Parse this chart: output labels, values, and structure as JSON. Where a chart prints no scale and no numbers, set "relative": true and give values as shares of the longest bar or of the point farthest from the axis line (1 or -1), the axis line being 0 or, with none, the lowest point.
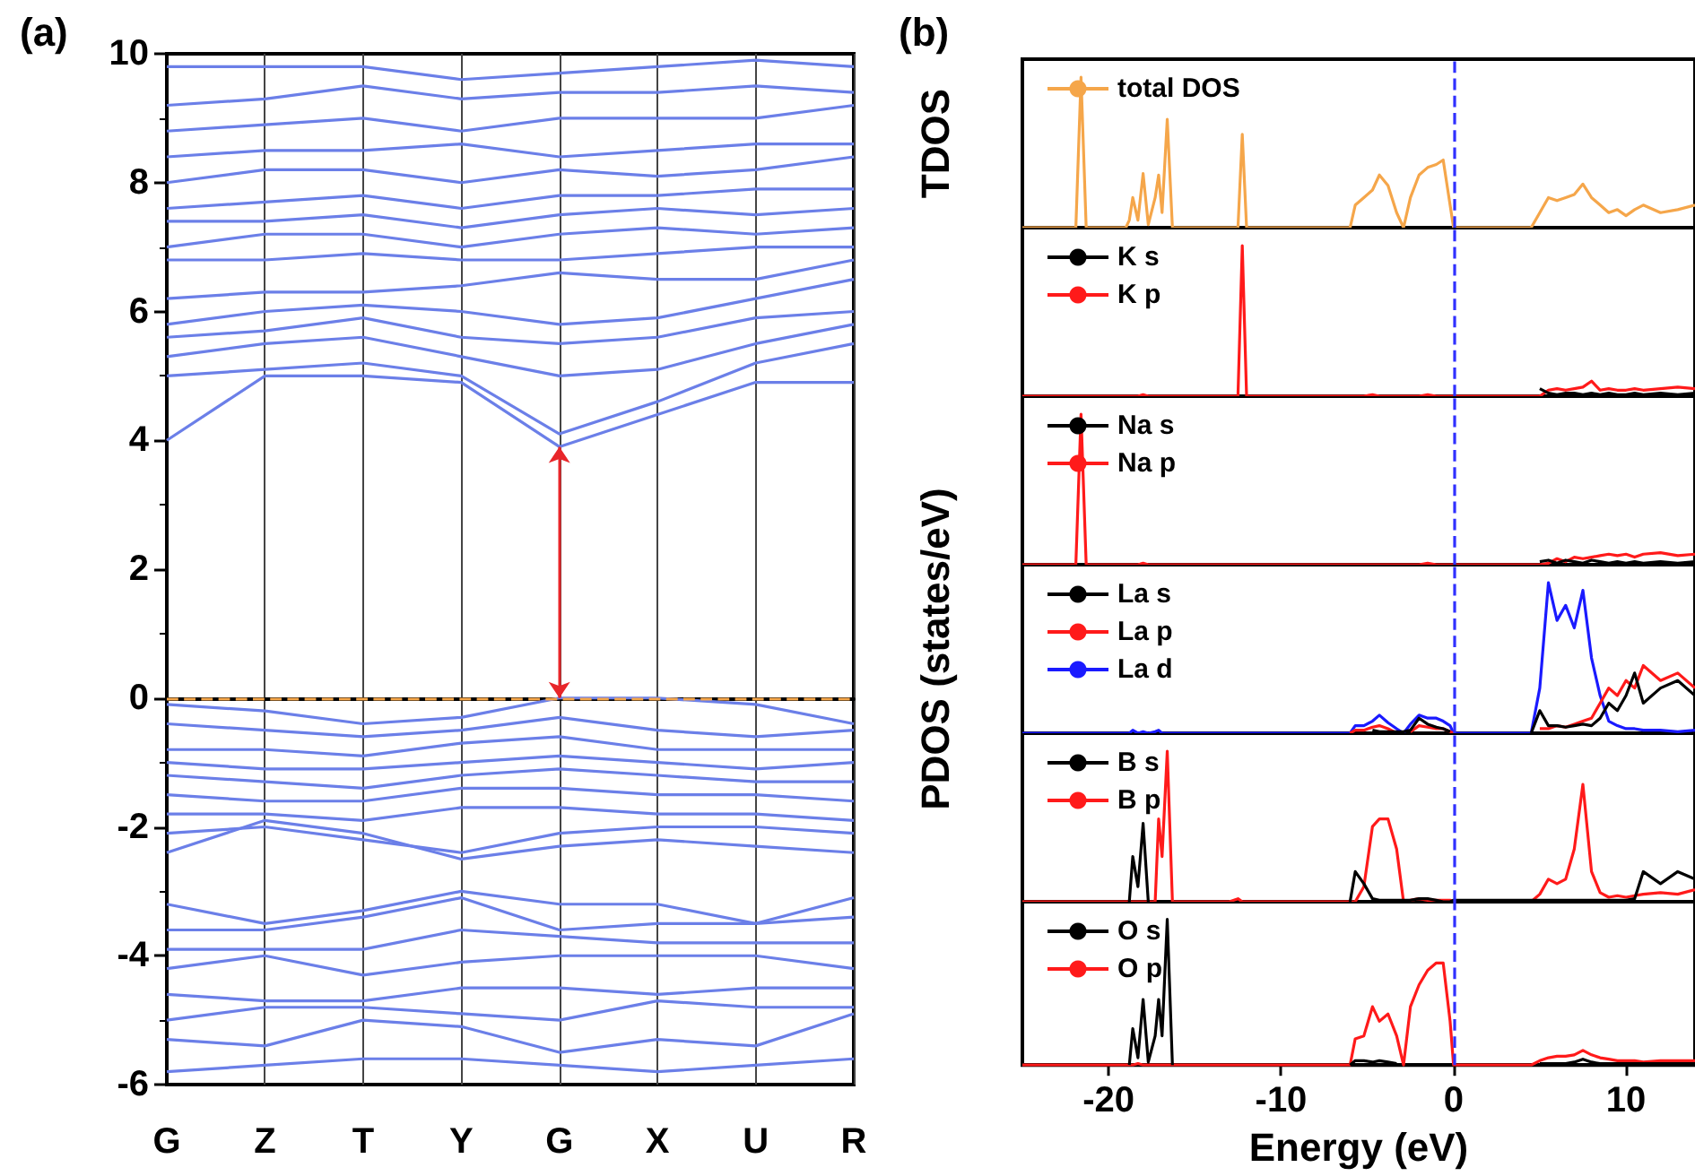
{
  "chart_data": [
    {
      "type": "line",
      "title": "(a)",
      "categories": [
        "G",
        "Z",
        "T",
        "Y",
        "G",
        "X",
        "U",
        "R"
      ],
      "ylim": [
        -6,
        10
      ],
      "yticks": [
        -6,
        -4,
        -2,
        0,
        2,
        4,
        6,
        8,
        10
      ],
      "grid": "x",
      "marker": "none",
      "ref_lines": [
        {
          "axis": "y",
          "value": 0,
          "color": "#f5a64a",
          "line_style": "dashed"
        }
      ],
      "series": [
        {
          "color": "#6b7fe8",
          "values": [
            4.0,
            5.0,
            5.0,
            4.9,
            3.9,
            4.4,
            4.9,
            4.9
          ]
        },
        {
          "color": "#6b7fe8",
          "values": [
            5.0,
            5.1,
            5.2,
            5.0,
            4.1,
            4.6,
            5.2,
            5.5
          ]
        },
        {
          "color": "#6b7fe8",
          "values": [
            5.3,
            5.5,
            5.6,
            5.3,
            5.0,
            5.1,
            5.5,
            5.8
          ]
        },
        {
          "color": "#6b7fe8",
          "values": [
            5.6,
            5.7,
            5.9,
            5.6,
            5.5,
            5.6,
            5.9,
            6.0
          ]
        },
        {
          "color": "#6b7fe8",
          "values": [
            5.8,
            6.0,
            6.1,
            6.0,
            5.8,
            5.9,
            6.2,
            6.5
          ]
        },
        {
          "color": "#6b7fe8",
          "values": [
            6.2,
            6.3,
            6.3,
            6.4,
            6.6,
            6.5,
            6.5,
            6.8
          ]
        },
        {
          "color": "#6b7fe8",
          "values": [
            6.8,
            6.8,
            6.9,
            6.8,
            6.8,
            6.9,
            7.0,
            7.0
          ]
        },
        {
          "color": "#6b7fe8",
          "values": [
            7.0,
            7.2,
            7.2,
            7.0,
            7.2,
            7.3,
            7.2,
            7.3
          ]
        },
        {
          "color": "#6b7fe8",
          "values": [
            7.4,
            7.4,
            7.5,
            7.3,
            7.5,
            7.6,
            7.5,
            7.6
          ]
        },
        {
          "color": "#6b7fe8",
          "values": [
            7.6,
            7.7,
            7.8,
            7.6,
            7.8,
            7.8,
            7.9,
            7.9
          ]
        },
        {
          "color": "#6b7fe8",
          "values": [
            8.0,
            8.2,
            8.2,
            8.0,
            8.2,
            8.1,
            8.2,
            8.4
          ]
        },
        {
          "color": "#6b7fe8",
          "values": [
            8.4,
            8.5,
            8.5,
            8.6,
            8.4,
            8.5,
            8.6,
            8.6
          ]
        },
        {
          "color": "#6b7fe8",
          "values": [
            8.8,
            8.9,
            9.0,
            8.8,
            9.0,
            9.0,
            9.0,
            9.2
          ]
        },
        {
          "color": "#6b7fe8",
          "values": [
            9.2,
            9.3,
            9.5,
            9.3,
            9.4,
            9.4,
            9.5,
            9.4
          ]
        },
        {
          "color": "#6b7fe8",
          "values": [
            9.8,
            9.8,
            9.8,
            9.6,
            9.7,
            9.8,
            9.9,
            9.8
          ]
        },
        {
          "color": "#6b7fe8",
          "values": [
            -0.1,
            -0.2,
            -0.4,
            -0.3,
            0.0,
            0.0,
            -0.1,
            -0.4
          ]
        },
        {
          "color": "#6b7fe8",
          "values": [
            -0.4,
            -0.5,
            -0.6,
            -0.5,
            -0.3,
            -0.5,
            -0.6,
            -0.5
          ]
        },
        {
          "color": "#6b7fe8",
          "values": [
            -0.8,
            -0.8,
            -0.9,
            -0.7,
            -0.6,
            -0.8,
            -0.8,
            -0.8
          ]
        },
        {
          "color": "#6b7fe8",
          "values": [
            -1.0,
            -1.1,
            -1.1,
            -1.0,
            -0.9,
            -1.0,
            -1.1,
            -1.0
          ]
        },
        {
          "color": "#6b7fe8",
          "values": [
            -1.2,
            -1.3,
            -1.4,
            -1.2,
            -1.1,
            -1.2,
            -1.3,
            -1.3
          ]
        },
        {
          "color": "#6b7fe8",
          "values": [
            -1.5,
            -1.6,
            -1.6,
            -1.4,
            -1.4,
            -1.5,
            -1.5,
            -1.6
          ]
        },
        {
          "color": "#6b7fe8",
          "values": [
            -1.8,
            -1.8,
            -1.9,
            -1.7,
            -1.7,
            -1.8,
            -1.8,
            -1.9
          ]
        },
        {
          "color": "#6b7fe8",
          "values": [
            -2.1,
            -2.0,
            -2.2,
            -2.4,
            -2.1,
            -2.0,
            -2.0,
            -2.1
          ]
        },
        {
          "color": "#6b7fe8",
          "values": [
            -2.4,
            -1.9,
            -2.1,
            -2.5,
            -2.3,
            -2.2,
            -2.3,
            -2.4
          ]
        },
        {
          "color": "#6b7fe8",
          "values": [
            -3.2,
            -3.5,
            -3.3,
            -3.0,
            -3.2,
            -3.2,
            -3.5,
            -3.1
          ]
        },
        {
          "color": "#6b7fe8",
          "values": [
            -3.6,
            -3.6,
            -3.4,
            -3.1,
            -3.6,
            -3.5,
            -3.5,
            -3.4
          ]
        },
        {
          "color": "#6b7fe8",
          "values": [
            -3.9,
            -3.9,
            -3.9,
            -3.6,
            -3.7,
            -3.8,
            -3.8,
            -3.8
          ]
        },
        {
          "color": "#6b7fe8",
          "values": [
            -4.2,
            -4.0,
            -4.3,
            -4.1,
            -4.0,
            -4.0,
            -4.0,
            -4.2
          ]
        },
        {
          "color": "#6b7fe8",
          "values": [
            -4.6,
            -4.7,
            -4.7,
            -4.5,
            -4.5,
            -4.6,
            -4.5,
            -4.5
          ]
        },
        {
          "color": "#6b7fe8",
          "values": [
            -5.0,
            -4.8,
            -4.8,
            -4.9,
            -5.0,
            -4.7,
            -4.8,
            -4.8
          ]
        },
        {
          "color": "#6b7fe8",
          "values": [
            -5.3,
            -5.4,
            -5.0,
            -5.1,
            -5.5,
            -5.3,
            -5.4,
            -4.9
          ]
        },
        {
          "color": "#6b7fe8",
          "values": [
            -5.8,
            -5.7,
            -5.6,
            -5.6,
            -5.7,
            -5.8,
            -5.7,
            -5.6
          ]
        }
      ]
    },
    {
      "type": "line",
      "title": "(b)",
      "ylabel": "TDOS",
      "relative": true,
      "tick_labels": false,
      "marker": "none",
      "legend": "top left",
      "x": [
        -25,
        -21.9,
        -21.6,
        -21.3,
        -19,
        -18.8,
        -18.6,
        -18.3,
        -18.0,
        -17.7,
        -17.3,
        -17.1,
        -16.9,
        -16.6,
        -16.3,
        -13,
        -12.5,
        -12.25,
        -12,
        -11,
        -6,
        -5.7,
        -5.2,
        -4.7,
        -4.3,
        -3.8,
        -3.3,
        -2.9,
        -2.5,
        -2.0,
        -1.5,
        -1.0,
        -0.6,
        -0.2,
        0,
        2,
        4.5,
        5.0,
        5.5,
        6.0,
        6.5,
        7.0,
        7.5,
        8.0,
        8.5,
        9.0,
        9.5,
        10.0,
        10.5,
        11,
        12,
        13,
        14
      ],
      "xlim": [
        -25,
        14
      ],
      "xticks": [
        -20,
        -10,
        0,
        10
      ],
      "ref_lines": [
        {
          "axis": "x",
          "value": 0,
          "color": "#3030ff",
          "line_style": "dashed"
        }
      ],
      "series": [
        {
          "name": "total DOS",
          "color": "#f5a64a",
          "values": [
            0,
            0,
            1,
            0,
            0,
            0.05,
            0.2,
            0.05,
            0.36,
            0.02,
            0.2,
            0.35,
            0.1,
            0.72,
            0,
            0,
            0,
            0.62,
            0,
            0,
            0,
            0.15,
            0.2,
            0.25,
            0.35,
            0.28,
            0.1,
            0,
            0.2,
            0.35,
            0.4,
            0.42,
            0.45,
            0.15,
            0,
            0,
            0,
            0.1,
            0.2,
            0.18,
            0.2,
            0.22,
            0.29,
            0.2,
            0.15,
            0.1,
            0.12,
            0.08,
            0.12,
            0.15,
            0.1,
            0.12,
            0.15
          ]
        }
      ]
    },
    {
      "type": "line",
      "relative": true,
      "tick_labels": false,
      "marker": "none",
      "legend": "top left",
      "x": [
        -25,
        -21.9,
        -21.6,
        -21.3,
        -19,
        -18.8,
        -18.6,
        -18.3,
        -18.0,
        -17.7,
        -17.3,
        -17.1,
        -16.9,
        -16.6,
        -16.3,
        -13,
        -12.5,
        -12.25,
        -12,
        -11,
        -6,
        -5.7,
        -5.2,
        -4.7,
        -4.3,
        -3.8,
        -3.3,
        -2.9,
        -2.5,
        -2.0,
        -1.5,
        -1.0,
        -0.6,
        -0.2,
        0,
        2,
        4.5,
        5.0,
        5.5,
        6.0,
        6.5,
        7.0,
        7.5,
        8.0,
        8.5,
        9.0,
        9.5,
        10.0,
        10.5,
        11,
        12,
        13,
        14
      ],
      "xlim": [
        -25,
        14
      ],
      "xticks": [
        -20,
        -10,
        0,
        10
      ],
      "ref_lines": [
        {
          "axis": "x",
          "value": 0,
          "color": "#3030ff",
          "line_style": "dashed"
        }
      ],
      "series": [
        {
          "name": "K s",
          "color": "#000000",
          "values": [
            null,
            null,
            null,
            null,
            null,
            null,
            null,
            null,
            null,
            null,
            null,
            null,
            null,
            null,
            null,
            null,
            null,
            null,
            null,
            null,
            null,
            null,
            null,
            null,
            null,
            null,
            null,
            null,
            null,
            null,
            null,
            null,
            null,
            null,
            null,
            null,
            null,
            0.05,
            0.02,
            0.01,
            0.02,
            0.02,
            0.01,
            0.02,
            0.01,
            0.02,
            0.01,
            0.01,
            0.02,
            0.01,
            0.02,
            0.01,
            0.02
          ]
        },
        {
          "name": "K p",
          "color": "#ff1a1a",
          "values": [
            0,
            0,
            0,
            0,
            0,
            0,
            0,
            0,
            0.01,
            0,
            0,
            0,
            0,
            0,
            0,
            0,
            0,
            1,
            0,
            0,
            0,
            0,
            0,
            0.01,
            0,
            0,
            0,
            0,
            0,
            0,
            0.01,
            0,
            0,
            0,
            0,
            0,
            0,
            0,
            0.04,
            0.05,
            0.04,
            0.05,
            0.06,
            0.1,
            0.04,
            0.05,
            0.04,
            0.04,
            0.05,
            0.04,
            0.05,
            0.06,
            0.05
          ]
        }
      ]
    },
    {
      "type": "line",
      "relative": true,
      "tick_labels": false,
      "marker": "none",
      "legend": "top left",
      "x": [
        -25,
        -21.9,
        -21.6,
        -21.3,
        -19,
        -18.8,
        -18.6,
        -18.3,
        -18.0,
        -17.7,
        -17.3,
        -17.1,
        -16.9,
        -16.6,
        -16.3,
        -13,
        -12.5,
        -12.25,
        -12,
        -11,
        -6,
        -5.7,
        -5.2,
        -4.7,
        -4.3,
        -3.8,
        -3.3,
        -2.9,
        -2.5,
        -2.0,
        -1.5,
        -1.0,
        -0.6,
        -0.2,
        0,
        2,
        4.5,
        5.0,
        5.5,
        6.0,
        6.5,
        7.0,
        7.5,
        8.0,
        8.5,
        9.0,
        9.5,
        10.0,
        10.5,
        11,
        12,
        13,
        14
      ],
      "xlim": [
        -25,
        14
      ],
      "xticks": [
        -20,
        -10,
        0,
        10
      ],
      "ref_lines": [
        {
          "axis": "x",
          "value": 0,
          "color": "#3030ff",
          "line_style": "dashed"
        }
      ],
      "series": [
        {
          "name": "Na s",
          "color": "#000000",
          "values": [
            null,
            null,
            null,
            null,
            null,
            null,
            null,
            null,
            null,
            null,
            null,
            null,
            null,
            null,
            null,
            null,
            null,
            null,
            null,
            null,
            null,
            null,
            null,
            null,
            null,
            null,
            null,
            null,
            null,
            null,
            null,
            null,
            null,
            null,
            null,
            null,
            null,
            0.02,
            0.03,
            0.01,
            0.03,
            0.02,
            0.01,
            0.03,
            0.02,
            0.01,
            0.02,
            0.01,
            0.02,
            0.01,
            0.02,
            0.01,
            0.02
          ]
        },
        {
          "name": "Na p",
          "color": "#ff1a1a",
          "values": [
            0,
            0,
            1,
            0,
            0,
            0,
            0,
            0,
            0.01,
            0,
            0,
            0,
            0,
            0,
            0,
            0,
            0,
            0,
            0,
            0,
            0,
            0,
            0,
            0,
            0,
            0,
            0,
            0,
            0,
            0,
            0.01,
            0,
            0,
            0,
            0,
            0,
            0,
            0,
            0.01,
            0.04,
            0.02,
            0.05,
            0.04,
            0.05,
            0.06,
            0.07,
            0.06,
            0.07,
            0.05,
            0.07,
            0.08,
            0.06,
            0.07
          ]
        }
      ]
    },
    {
      "type": "line",
      "ylabel": "PDOS (states/eV)",
      "relative": true,
      "tick_labels": false,
      "marker": "none",
      "legend": "top left",
      "x": [
        -25,
        -21.9,
        -21.6,
        -21.3,
        -19,
        -18.8,
        -18.6,
        -18.3,
        -18.0,
        -17.7,
        -17.3,
        -17.1,
        -16.9,
        -16.6,
        -16.3,
        -13,
        -12.5,
        -12.25,
        -12,
        -11,
        -6,
        -5.7,
        -5.2,
        -4.7,
        -4.3,
        -3.8,
        -3.3,
        -2.9,
        -2.5,
        -2.0,
        -1.5,
        -1.0,
        -0.6,
        -0.2,
        0,
        2,
        4.5,
        5.0,
        5.5,
        6.0,
        6.5,
        7.0,
        7.5,
        8.0,
        8.5,
        9.0,
        9.5,
        10.0,
        10.5,
        11,
        12,
        13,
        14
      ],
      "xlim": [
        -25,
        14
      ],
      "xticks": [
        -20,
        -10,
        0,
        10
      ],
      "ref_lines": [
        {
          "axis": "x",
          "value": 0,
          "color": "#3030ff",
          "line_style": "dashed"
        }
      ],
      "series": [
        {
          "name": "La s",
          "color": "#000000",
          "values": [
            null,
            null,
            null,
            null,
            null,
            null,
            null,
            null,
            null,
            null,
            null,
            null,
            null,
            null,
            null,
            null,
            null,
            null,
            null,
            null,
            null,
            null,
            null,
            0.02,
            0.01,
            0.01,
            0.01,
            0.01,
            0.02,
            0.1,
            0.06,
            0.04,
            0.03,
            0.01,
            null,
            null,
            0,
            0.15,
            0.05,
            0.05,
            0.04,
            0.05,
            0.06,
            0.05,
            0.1,
            0.2,
            0.15,
            0.25,
            0.4,
            0.2,
            0.3,
            0.35,
            0.25
          ]
        },
        {
          "name": "La p",
          "color": "#ff1a1a",
          "values": [
            null,
            null,
            null,
            null,
            null,
            null,
            null,
            null,
            null,
            null,
            null,
            null,
            null,
            null,
            null,
            null,
            null,
            null,
            null,
            null,
            0,
            0.02,
            0.02,
            0.04,
            0.05,
            0.03,
            0,
            null,
            0.01,
            0.05,
            0.04,
            0.03,
            0.03,
            0.01,
            0,
            null,
            null,
            0.03,
            0.03,
            0.05,
            0.04,
            0.06,
            0.08,
            0.1,
            0.2,
            0.3,
            0.25,
            0.35,
            0.3,
            0.45,
            0.35,
            0.4,
            0.3
          ]
        },
        {
          "name": "La d",
          "color": "#1a1aff",
          "values": [
            0,
            0,
            0,
            0,
            0,
            0,
            0.02,
            0,
            0.01,
            0,
            0.01,
            0.02,
            0,
            0,
            0,
            0,
            0,
            0,
            0,
            0,
            0,
            0.05,
            0.05,
            0.08,
            0.12,
            0.07,
            0.03,
            0,
            0.06,
            0.12,
            0.1,
            0.1,
            0.08,
            0.05,
            0,
            0,
            0,
            0.3,
            1,
            0.75,
            0.85,
            0.7,
            0.95,
            0.5,
            0.25,
            0.08,
            0.05,
            0.03,
            0.03,
            0.02,
            0.02,
            0.01,
            0.02
          ]
        }
      ]
    },
    {
      "type": "line",
      "relative": true,
      "tick_labels": false,
      "marker": "none",
      "legend": "top left",
      "x": [
        -25,
        -21.9,
        -21.6,
        -21.3,
        -19,
        -18.8,
        -18.6,
        -18.3,
        -18.0,
        -17.7,
        -17.3,
        -17.1,
        -16.9,
        -16.6,
        -16.3,
        -13,
        -12.5,
        -12.25,
        -12,
        -11,
        -6,
        -5.7,
        -5.2,
        -4.7,
        -4.3,
        -3.8,
        -3.3,
        -2.9,
        -2.5,
        -2.0,
        -1.5,
        -1.0,
        -0.6,
        -0.2,
        0,
        2,
        4.5,
        5.0,
        5.5,
        6.0,
        6.5,
        7.0,
        7.5,
        8.0,
        8.5,
        9.0,
        9.5,
        10.0,
        10.5,
        11,
        12,
        13,
        14
      ],
      "xlim": [
        -25,
        14
      ],
      "xticks": [
        -20,
        -10,
        0,
        10
      ],
      "ref_lines": [
        {
          "axis": "x",
          "value": 0,
          "color": "#3030ff",
          "line_style": "dashed"
        }
      ],
      "series": [
        {
          "name": "B s",
          "color": "#000000",
          "values": [
            null,
            null,
            null,
            null,
            null,
            0,
            0.3,
            0.1,
            0.52,
            0,
            null,
            null,
            null,
            null,
            null,
            null,
            null,
            null,
            null,
            null,
            0,
            0.2,
            0.12,
            0.02,
            0.01,
            0.01,
            0.01,
            0.01,
            0.01,
            0.02,
            0.02,
            0.01,
            0,
            0,
            0.01,
            0.01,
            0.01,
            0.01,
            0.01,
            0.01,
            0.01,
            0.01,
            0.01,
            0.01,
            0.01,
            0.01,
            0.01,
            0.01,
            0.02,
            0.2,
            0.12,
            0.2,
            0.15
          ]
        },
        {
          "name": "B p",
          "color": "#ff1a1a",
          "values": [
            0,
            0,
            0,
            0,
            0,
            0,
            0,
            0,
            0,
            0,
            0,
            0.55,
            0.3,
            1,
            0,
            0,
            0.02,
            0,
            0,
            0,
            0,
            0,
            0.1,
            0.5,
            0.55,
            0.55,
            0.35,
            0,
            0.01,
            0.02,
            0.01,
            0.01,
            0.01,
            0.01,
            0,
            0,
            0,
            0.05,
            0.15,
            0.12,
            0.15,
            0.35,
            0.78,
            0.2,
            0.06,
            0.03,
            0.04,
            0.03,
            0.04,
            0.05,
            0.06,
            0.05,
            0.08
          ]
        }
      ]
    },
    {
      "type": "line",
      "xlabel": "Energy (eV)",
      "relative": true,
      "tick_labels": "x",
      "marker": "none",
      "legend": "top left",
      "x": [
        -25,
        -21.9,
        -21.6,
        -21.3,
        -19,
        -18.8,
        -18.6,
        -18.3,
        -18.0,
        -17.7,
        -17.3,
        -17.1,
        -16.9,
        -16.6,
        -16.3,
        -13,
        -12.5,
        -12.25,
        -12,
        -11,
        -6,
        -5.7,
        -5.2,
        -4.7,
        -4.3,
        -3.8,
        -3.3,
        -2.9,
        -2.5,
        -2.0,
        -1.5,
        -1.0,
        -0.6,
        -0.2,
        0,
        2,
        4.5,
        5.0,
        5.5,
        6.0,
        6.5,
        7.0,
        7.5,
        8.0,
        8.5,
        9.0,
        9.5,
        10.0,
        10.5,
        11,
        12,
        13,
        14
      ],
      "xlim": [
        -25,
        14
      ],
      "xticks": [
        -20,
        -10,
        0,
        10
      ],
      "ref_lines": [
        {
          "axis": "x",
          "value": 0,
          "color": "#3030ff",
          "line_style": "dashed"
        }
      ],
      "series": [
        {
          "name": "O s",
          "color": "#000000",
          "values": [
            null,
            null,
            null,
            null,
            null,
            0,
            0.25,
            0.05,
            0.45,
            0.02,
            0.2,
            0.45,
            0.2,
            1,
            0,
            null,
            null,
            null,
            null,
            null,
            0,
            0.03,
            0.03,
            0.02,
            0.03,
            0.02,
            0.01,
            null,
            null,
            null,
            null,
            null,
            null,
            null,
            null,
            null,
            null,
            0.01,
            0.01,
            0.01,
            0.01,
            0.02,
            0.04,
            0.02,
            0.01,
            0.01,
            0.01,
            0.01,
            0.01,
            0.01,
            0.01,
            0.01,
            0.01
          ]
        },
        {
          "name": "O p",
          "color": "#ff1a1a",
          "values": [
            0,
            0,
            0,
            0,
            0,
            0,
            0,
            0.01,
            0,
            0,
            0,
            0,
            0,
            0,
            0,
            0,
            0,
            0,
            0,
            0,
            0,
            0.18,
            0.2,
            0.4,
            0.3,
            0.35,
            0.2,
            0,
            0.4,
            0.55,
            0.65,
            0.7,
            0.7,
            0.3,
            0,
            0,
            0,
            0.03,
            0.05,
            0.06,
            0.06,
            0.07,
            0.1,
            0.07,
            0.05,
            0.04,
            0.03,
            0.03,
            0.03,
            0.02,
            0.03,
            0.03,
            0.03
          ]
        }
      ]
    }
  ]
}
